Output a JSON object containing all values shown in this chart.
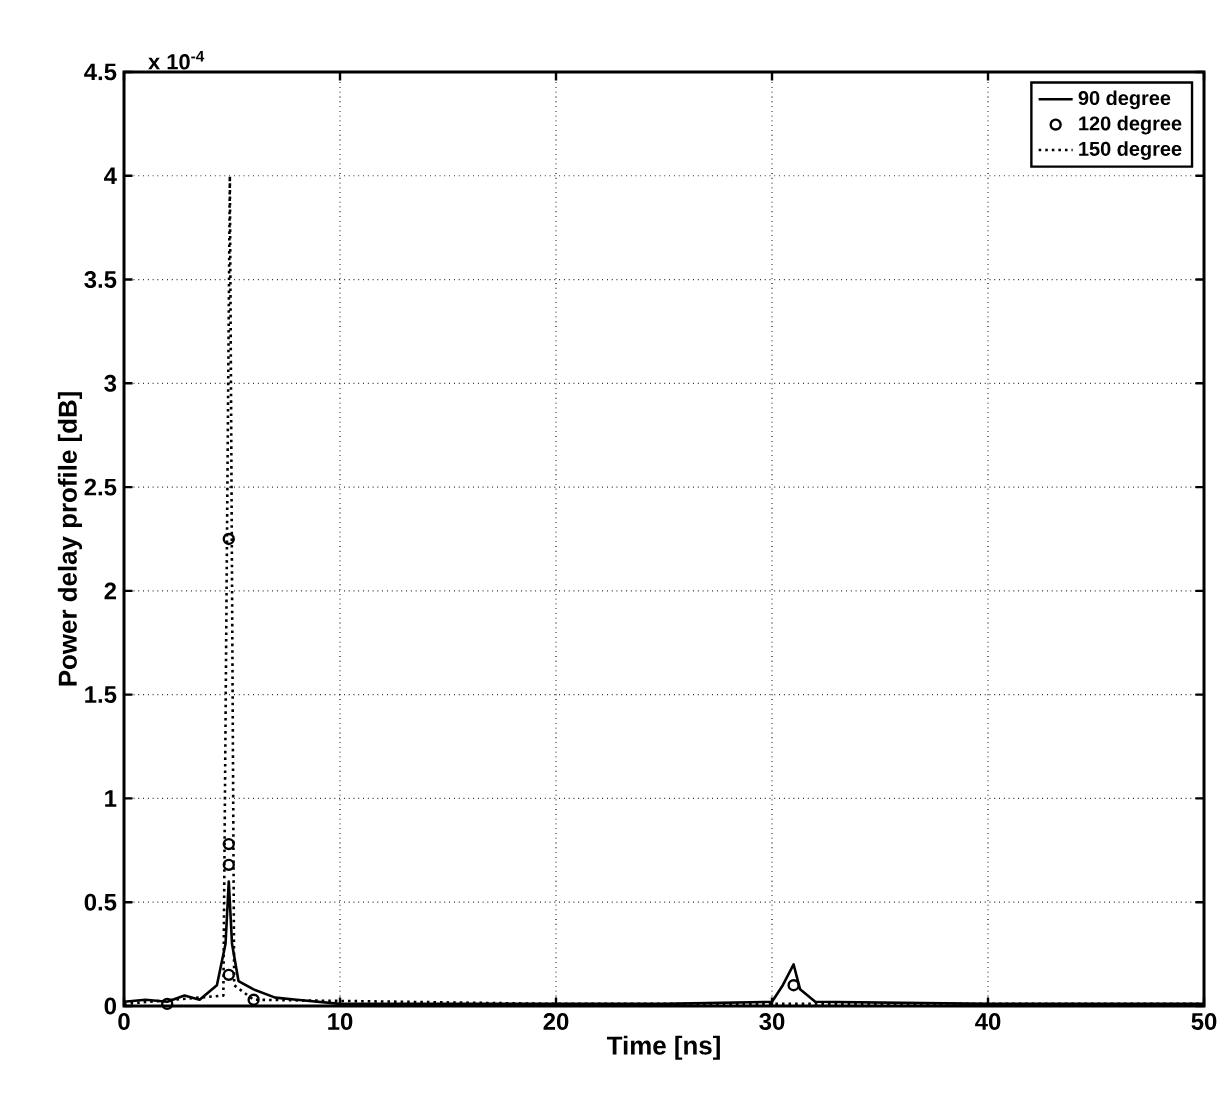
{
  "chart_data": {
    "type": "line",
    "xlabel": "Time [ns]",
    "ylabel": "Power delay profile [dB]",
    "annotations": [
      "x 10$^{-4}$"
    ],
    "xlim": [
      0,
      50
    ],
    "xticks": [
      0,
      10,
      20,
      30,
      40,
      50
    ],
    "ylim": [
      0,
      4.5
    ],
    "yticks": [
      0,
      0.5,
      1,
      1.5,
      2,
      2.5,
      3,
      3.5,
      4,
      4.5
    ],
    "grid": true,
    "legend": "top right",
    "series": [
      {
        "name": "90 degree",
        "color": "#000000",
        "line_style": "solid",
        "marker": "none",
        "x": [
          0,
          1,
          2,
          2.8,
          3.5,
          4.3,
          4.7,
          4.85,
          5.0,
          5.3,
          6,
          7,
          8,
          10,
          15,
          20,
          25,
          30,
          30.5,
          31,
          31.3,
          32,
          40,
          50
        ],
        "values": [
          0.02,
          0.03,
          0.02,
          0.05,
          0.03,
          0.1,
          0.3,
          0.6,
          0.3,
          0.12,
          0.08,
          0.04,
          0.03,
          0.01,
          0.01,
          0.01,
          0.01,
          0.02,
          0.1,
          0.2,
          0.08,
          0.02,
          0.01,
          0.01
        ]
      },
      {
        "name": "120 degree",
        "color": "#000000",
        "type": "scatter",
        "marker": "circle",
        "x": [
          2,
          4.85,
          4.85,
          4.85,
          4.85,
          6,
          31
        ],
        "values": [
          0.01,
          0.15,
          0.68,
          0.78,
          2.25,
          0.03,
          0.1
        ]
      },
      {
        "name": "150 degree",
        "color": "#000000",
        "line_style": "dotted",
        "marker": "none",
        "x": [
          0,
          4.6,
          4.9,
          5.1,
          6,
          20,
          50
        ],
        "values": [
          0.01,
          0.05,
          4.0,
          0.1,
          0.03,
          0.01,
          0.01
        ]
      }
    ]
  }
}
